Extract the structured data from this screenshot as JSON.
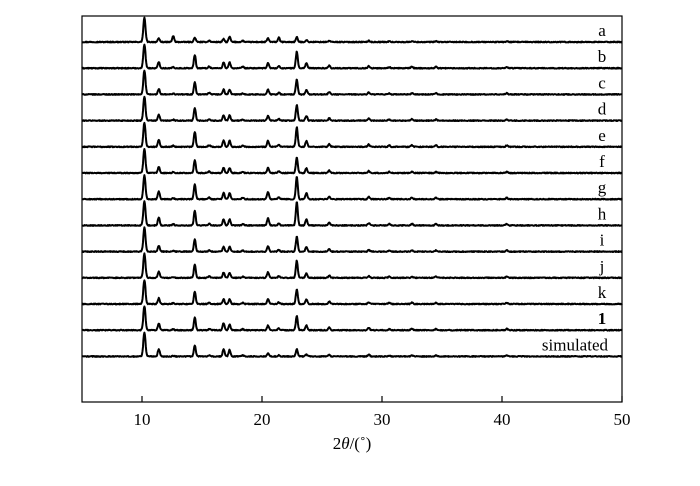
{
  "chart_data": {
    "type": "line",
    "title": "",
    "xlabel": {
      "prefix": "2",
      "italic": "θ",
      "suffix": "/(˚)"
    },
    "ylabel": "",
    "xlim": [
      5,
      50
    ],
    "xticks": [
      10,
      20,
      30,
      40,
      50
    ],
    "yaxis_ticks_labeled": false,
    "grid": false,
    "legend": "none",
    "color": "#000000",
    "peak_positions": [
      10.2,
      11.4,
      12.6,
      14.4,
      15.6,
      16.8,
      17.3,
      18.4,
      20.5,
      21.4,
      22.9,
      23.7,
      25.6,
      28.9,
      30.6,
      32.5,
      34.5,
      40.4
    ],
    "series": [
      {
        "name": "a",
        "bold": false,
        "peak_intensity": [
          1.0,
          0.14,
          0.25,
          0.18,
          0.06,
          0.12,
          0.22,
          0.05,
          0.16,
          0.18,
          0.2,
          0.08,
          0.05,
          0.05,
          0.03,
          0.04,
          0.03,
          0.03
        ]
      },
      {
        "name": "b",
        "bold": false,
        "peak_intensity": [
          1.0,
          0.26,
          0.04,
          0.55,
          0.07,
          0.24,
          0.24,
          0.06,
          0.22,
          0.08,
          0.7,
          0.22,
          0.11,
          0.09,
          0.05,
          0.07,
          0.06,
          0.06
        ]
      },
      {
        "name": "c",
        "bold": false,
        "peak_intensity": [
          1.0,
          0.22,
          0.04,
          0.5,
          0.06,
          0.2,
          0.2,
          0.05,
          0.2,
          0.07,
          0.62,
          0.2,
          0.1,
          0.08,
          0.05,
          0.06,
          0.05,
          0.05
        ]
      },
      {
        "name": "d",
        "bold": false,
        "peak_intensity": [
          1.0,
          0.24,
          0.04,
          0.52,
          0.06,
          0.22,
          0.22,
          0.05,
          0.2,
          0.07,
          0.66,
          0.2,
          0.1,
          0.08,
          0.05,
          0.06,
          0.05,
          0.05
        ]
      },
      {
        "name": "e",
        "bold": false,
        "peak_intensity": [
          1.0,
          0.3,
          0.05,
          0.62,
          0.07,
          0.26,
          0.26,
          0.06,
          0.26,
          0.08,
          0.82,
          0.24,
          0.12,
          0.1,
          0.06,
          0.07,
          0.06,
          0.06
        ]
      },
      {
        "name": "f",
        "bold": false,
        "peak_intensity": [
          1.0,
          0.25,
          0.04,
          0.52,
          0.06,
          0.22,
          0.22,
          0.05,
          0.22,
          0.07,
          0.66,
          0.2,
          0.1,
          0.08,
          0.05,
          0.06,
          0.05,
          0.05
        ]
      },
      {
        "name": "g",
        "bold": false,
        "peak_intensity": [
          1.0,
          0.32,
          0.05,
          0.62,
          0.07,
          0.26,
          0.26,
          0.06,
          0.3,
          0.08,
          0.95,
          0.26,
          0.12,
          0.1,
          0.06,
          0.07,
          0.06,
          0.06
        ]
      },
      {
        "name": "h",
        "bold": false,
        "peak_intensity": [
          1.0,
          0.34,
          0.05,
          0.62,
          0.07,
          0.26,
          0.26,
          0.06,
          0.3,
          0.08,
          0.98,
          0.26,
          0.12,
          0.1,
          0.06,
          0.07,
          0.06,
          0.06
        ]
      },
      {
        "name": "i",
        "bold": false,
        "peak_intensity": [
          1.0,
          0.24,
          0.04,
          0.5,
          0.06,
          0.2,
          0.2,
          0.05,
          0.22,
          0.07,
          0.62,
          0.2,
          0.1,
          0.08,
          0.05,
          0.06,
          0.05,
          0.05
        ]
      },
      {
        "name": "j",
        "bold": false,
        "peak_intensity": [
          1.0,
          0.26,
          0.04,
          0.55,
          0.06,
          0.22,
          0.22,
          0.05,
          0.24,
          0.07,
          0.72,
          0.2,
          0.1,
          0.08,
          0.05,
          0.06,
          0.05,
          0.05
        ]
      },
      {
        "name": "k",
        "bold": false,
        "peak_intensity": [
          1.0,
          0.24,
          0.04,
          0.52,
          0.06,
          0.2,
          0.2,
          0.05,
          0.2,
          0.07,
          0.62,
          0.2,
          0.1,
          0.08,
          0.05,
          0.06,
          0.05,
          0.05
        ]
      },
      {
        "name": "1",
        "bold": true,
        "peak_intensity": [
          1.0,
          0.28,
          0.04,
          0.52,
          0.06,
          0.3,
          0.24,
          0.05,
          0.2,
          0.07,
          0.6,
          0.2,
          0.12,
          0.1,
          0.05,
          0.06,
          0.05,
          0.06
        ]
      },
      {
        "name": "simulated",
        "bold": false,
        "peak_intensity": [
          1.0,
          0.3,
          0.03,
          0.45,
          0.05,
          0.3,
          0.28,
          0.04,
          0.12,
          0.05,
          0.3,
          0.08,
          0.06,
          0.08,
          0.03,
          0.05,
          0.04,
          0.05
        ]
      }
    ]
  }
}
